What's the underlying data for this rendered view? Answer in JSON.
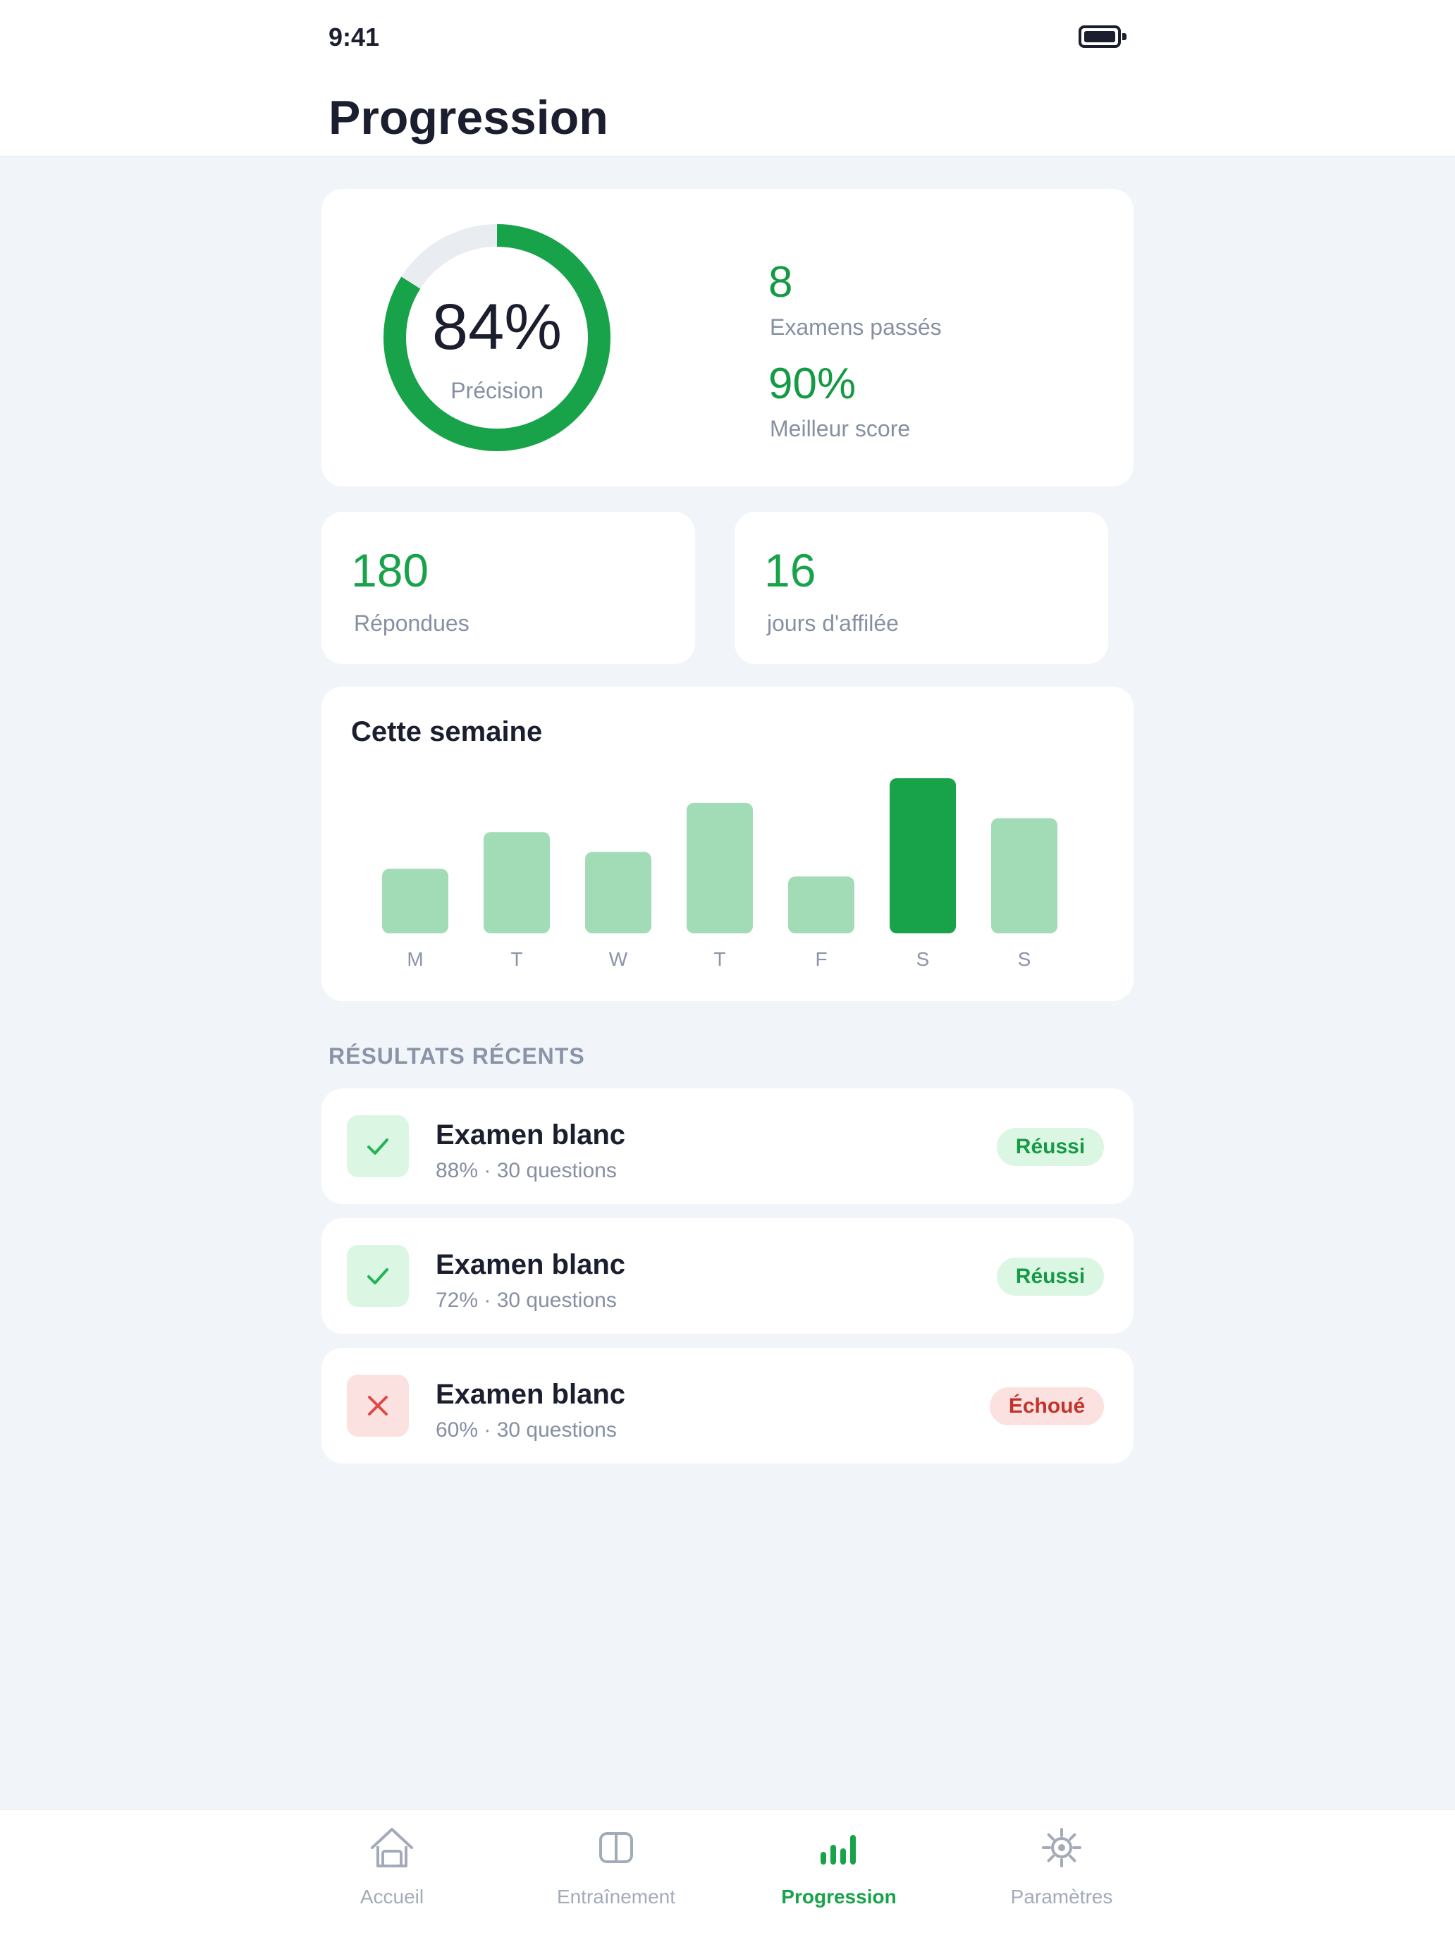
{
  "status_bar": {
    "time": "9:41",
    "battery_icon": "battery-icon"
  },
  "header": {
    "title": "Progression"
  },
  "summary": {
    "accuracy_value": "84%",
    "accuracy_fraction": 0.84,
    "accuracy_label": "Précision",
    "exams_value": "8",
    "exams_label": "Examens passés",
    "best_value": "90%",
    "best_label": "Meilleur score"
  },
  "mini_stats": [
    {
      "value": "180",
      "label": "Répondues"
    },
    {
      "value": "16",
      "label": "jours d'affilée"
    }
  ],
  "week": {
    "title": "Cette semaine",
    "chart_data": {
      "type": "bar",
      "categories": [
        "M",
        "T",
        "W",
        "T",
        "F",
        "S",
        "S"
      ],
      "values": [
        42,
        66,
        53,
        85,
        37,
        101,
        75
      ],
      "highlight_index": 5,
      "ylim": [
        0,
        101
      ]
    }
  },
  "recent": {
    "header": "RÉSULTATS RÉCENTS",
    "items": [
      {
        "title": "Examen blanc",
        "subtitle": "88% · 30 questions",
        "status": "Réussi",
        "passed": true,
        "icon": "check-icon"
      },
      {
        "title": "Examen blanc",
        "subtitle": "72% · 30 questions",
        "status": "Réussi",
        "passed": true,
        "icon": "check-icon"
      },
      {
        "title": "Examen blanc",
        "subtitle": "60% · 30 questions",
        "status": "Échoué",
        "passed": false,
        "icon": "cross-icon"
      }
    ]
  },
  "tabs": [
    {
      "label": "Accueil",
      "icon": "home-icon"
    },
    {
      "label": "Entraînement",
      "icon": "book-icon"
    },
    {
      "label": "Progression",
      "icon": "bar-chart-icon",
      "active": true
    },
    {
      "label": "Paramètres",
      "icon": "gear-icon"
    }
  ],
  "colors": {
    "accent": "#18a34a",
    "bar_light": "#a2dcb6",
    "ring_track": "#e9edf2",
    "pass_bg": "#dcf6e4",
    "fail_bg": "#fbe1df",
    "fail_text": "#c3332b"
  }
}
